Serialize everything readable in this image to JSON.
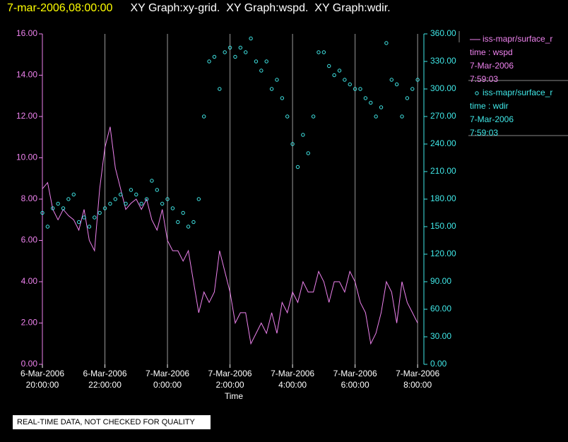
{
  "chart_data": {
    "type": "line-scatter",
    "title_time": "7-mar-2006,08:00:00",
    "title": " XY Graph:xy-grid.  XY Graph:wspd.  XY Graph:wdir.",
    "xlabel": "Time",
    "footer": "REAL-TIME DATA, NOT CHECKED FOR QUALITY",
    "grid": true,
    "xlim": [
      "2006-03-06T20:00",
      "2006-03-07T08:12"
    ],
    "xticks": [
      {
        "value": "2006-03-06T20:00",
        "label": [
          "6-Mar-2006",
          "20:00:00"
        ]
      },
      {
        "value": "2006-03-06T22:00",
        "label": [
          "6-Mar-2006",
          "22:00:00"
        ]
      },
      {
        "value": "2006-03-07T00:00",
        "label": [
          "7-Mar-2006",
          "0:00:00"
        ]
      },
      {
        "value": "2006-03-07T02:00",
        "label": [
          "7-Mar-2006",
          "2:00:00"
        ]
      },
      {
        "value": "2006-03-07T04:00",
        "label": [
          "7-Mar-2006",
          "4:00:00"
        ]
      },
      {
        "value": "2006-03-07T06:00",
        "label": [
          "7-Mar-2006",
          "6:00:00"
        ]
      },
      {
        "value": "2006-03-07T08:00",
        "label": [
          "7-Mar-2006",
          "8:00:00"
        ]
      }
    ],
    "ylim": [
      0,
      16
    ],
    "yticks": [
      {
        "value": 0,
        "label": "0.00"
      },
      {
        "value": 2,
        "label": "2.00"
      },
      {
        "value": 4,
        "label": "4.00"
      },
      {
        "value": 6,
        "label": "6.00"
      },
      {
        "value": 8,
        "label": "8.00"
      },
      {
        "value": 10,
        "label": "10.00"
      },
      {
        "value": 12,
        "label": "12.00"
      },
      {
        "value": 14,
        "label": "14.00"
      },
      {
        "value": 16,
        "label": "16.00"
      }
    ],
    "y2lim": [
      0,
      360
    ],
    "y2ticks": [
      {
        "value": 0,
        "label": "0.00"
      },
      {
        "value": 30,
        "label": "30.00"
      },
      {
        "value": 60,
        "label": "60.00"
      },
      {
        "value": 90,
        "label": "90.00"
      },
      {
        "value": 120,
        "label": "120.00"
      },
      {
        "value": 150,
        "label": "150.00"
      },
      {
        "value": 180,
        "label": "180.00"
      },
      {
        "value": 210,
        "label": "210.00"
      },
      {
        "value": 240,
        "label": "240.00"
      },
      {
        "value": 270,
        "label": "270.00"
      },
      {
        "value": 300,
        "label": "300.00"
      },
      {
        "value": 330,
        "label": "330.00"
      },
      {
        "value": 360,
        "label": "360.00"
      }
    ],
    "x": [
      "2006-03-06T20:00",
      "2006-03-06T20:10",
      "2006-03-06T20:20",
      "2006-03-06T20:30",
      "2006-03-06T20:40",
      "2006-03-06T20:50",
      "2006-03-06T21:00",
      "2006-03-06T21:10",
      "2006-03-06T21:20",
      "2006-03-06T21:30",
      "2006-03-06T21:40",
      "2006-03-06T21:50",
      "2006-03-06T22:00",
      "2006-03-06T22:10",
      "2006-03-06T22:20",
      "2006-03-06T22:30",
      "2006-03-06T22:40",
      "2006-03-06T22:50",
      "2006-03-06T23:00",
      "2006-03-06T23:10",
      "2006-03-06T23:20",
      "2006-03-06T23:30",
      "2006-03-06T23:40",
      "2006-03-06T23:50",
      "2006-03-07T00:00",
      "2006-03-07T00:10",
      "2006-03-07T00:20",
      "2006-03-07T00:30",
      "2006-03-07T00:40",
      "2006-03-07T00:50",
      "2006-03-07T01:00",
      "2006-03-07T01:10",
      "2006-03-07T01:20",
      "2006-03-07T01:30",
      "2006-03-07T01:40",
      "2006-03-07T01:50",
      "2006-03-07T02:00",
      "2006-03-07T02:10",
      "2006-03-07T02:20",
      "2006-03-07T02:30",
      "2006-03-07T02:40",
      "2006-03-07T02:50",
      "2006-03-07T03:00",
      "2006-03-07T03:10",
      "2006-03-07T03:20",
      "2006-03-07T03:30",
      "2006-03-07T03:40",
      "2006-03-07T03:50",
      "2006-03-07T04:00",
      "2006-03-07T04:10",
      "2006-03-07T04:20",
      "2006-03-07T04:30",
      "2006-03-07T04:40",
      "2006-03-07T04:50",
      "2006-03-07T05:00",
      "2006-03-07T05:10",
      "2006-03-07T05:20",
      "2006-03-07T05:30",
      "2006-03-07T05:40",
      "2006-03-07T05:50",
      "2006-03-07T06:00",
      "2006-03-07T06:10",
      "2006-03-07T06:20",
      "2006-03-07T06:30",
      "2006-03-07T06:40",
      "2006-03-07T06:50",
      "2006-03-07T07:00",
      "2006-03-07T07:10",
      "2006-03-07T07:20",
      "2006-03-07T07:30",
      "2006-03-07T07:40",
      "2006-03-07T07:50",
      "2006-03-07T08:00"
    ],
    "series": [
      {
        "name": "iss-mapr/surface_r",
        "legend_lines": [
          "time : wspd",
          "7-Mar-2006",
          "7:59:03"
        ],
        "color": "#ee82ee",
        "style": "line",
        "values": [
          8.5,
          8.8,
          7.5,
          7.0,
          7.5,
          7.2,
          7.0,
          6.5,
          7.5,
          6.0,
          5.5,
          8.5,
          10.5,
          11.5,
          9.5,
          8.5,
          7.5,
          7.8,
          8.0,
          7.5,
          8.0,
          7.0,
          6.5,
          7.5,
          6.0,
          5.5,
          5.5,
          5.0,
          5.5,
          4.0,
          2.5,
          3.5,
          3.0,
          3.5,
          5.5,
          4.5,
          3.5,
          2.0,
          2.5,
          2.5,
          1.0,
          1.5,
          2.0,
          1.5,
          2.5,
          1.5,
          3.0,
          2.5,
          3.5,
          3.0,
          4.0,
          3.5,
          3.5,
          4.5,
          4.0,
          3.0,
          4.0,
          4.0,
          3.5,
          4.5,
          4.0,
          3.0,
          2.5,
          1.0,
          1.5,
          2.5,
          4.0,
          3.5,
          2.0,
          4.0,
          3.0,
          2.5,
          2.0
        ]
      },
      {
        "name": "iss-mapr/surface_r",
        "legend_lines": [
          "time : wdir",
          "7-Mar-2006",
          "7:59:03"
        ],
        "color": "#40e8e8",
        "style": "points",
        "axis": "y2",
        "values": [
          165,
          150,
          170,
          175,
          170,
          180,
          185,
          155,
          160,
          150,
          160,
          165,
          170,
          175,
          180,
          185,
          175,
          190,
          185,
          175,
          180,
          200,
          190,
          175,
          180,
          170,
          155,
          165,
          150,
          155,
          180,
          270,
          330,
          335,
          300,
          340,
          345,
          335,
          345,
          340,
          355,
          330,
          320,
          330,
          300,
          310,
          290,
          270,
          240,
          215,
          250,
          230,
          270,
          340,
          340,
          325,
          315,
          320,
          310,
          305,
          300,
          300,
          290,
          285,
          270,
          280,
          350,
          310,
          305,
          270,
          290,
          300,
          310
        ]
      }
    ]
  }
}
